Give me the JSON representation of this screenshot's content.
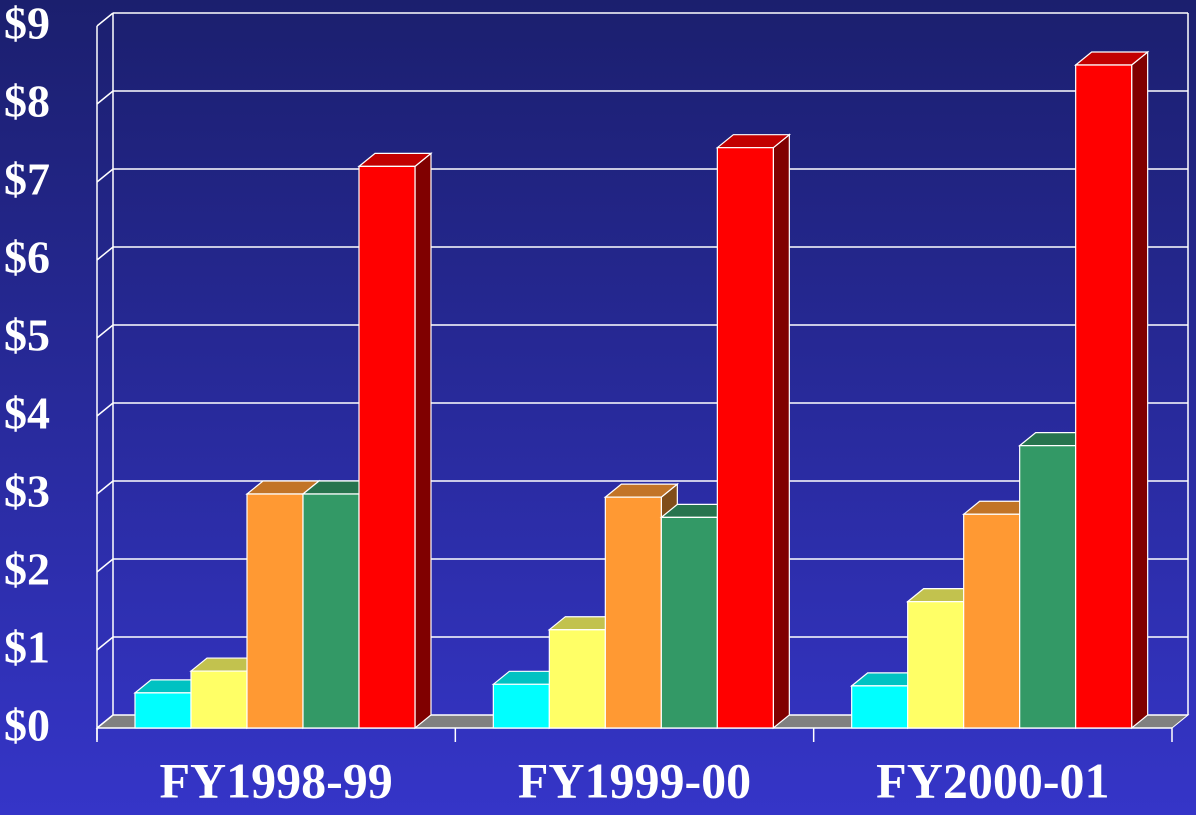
{
  "chart_data": {
    "type": "bar3d",
    "categories": [
      "FY1998-99",
      "FY1999-00",
      "FY2000-01"
    ],
    "series": [
      {
        "color": "#00ffff",
        "values": [
          0.45,
          0.56,
          0.54
        ]
      },
      {
        "color": "#ffff66",
        "values": [
          0.73,
          1.26,
          1.62
        ]
      },
      {
        "color": "#ff9933",
        "values": [
          3.0,
          2.96,
          2.74
        ]
      },
      {
        "color": "#339966",
        "values": [
          3.0,
          2.7,
          3.62
        ]
      },
      {
        "color": "#ff0000",
        "values": [
          7.2,
          7.44,
          8.5
        ]
      }
    ],
    "ylim": [
      0,
      9
    ],
    "yticks": [
      {
        "value": 0,
        "label": "$0"
      },
      {
        "value": 1,
        "label": "$1"
      },
      {
        "value": 2,
        "label": "$2"
      },
      {
        "value": 3,
        "label": "$3"
      },
      {
        "value": 4,
        "label": "$4"
      },
      {
        "value": 5,
        "label": "$5"
      },
      {
        "value": 6,
        "label": "$6"
      },
      {
        "value": 7,
        "label": "$7"
      },
      {
        "value": 8,
        "label": "$8"
      },
      {
        "value": 9,
        "label": "$9"
      }
    ],
    "grid": true
  }
}
